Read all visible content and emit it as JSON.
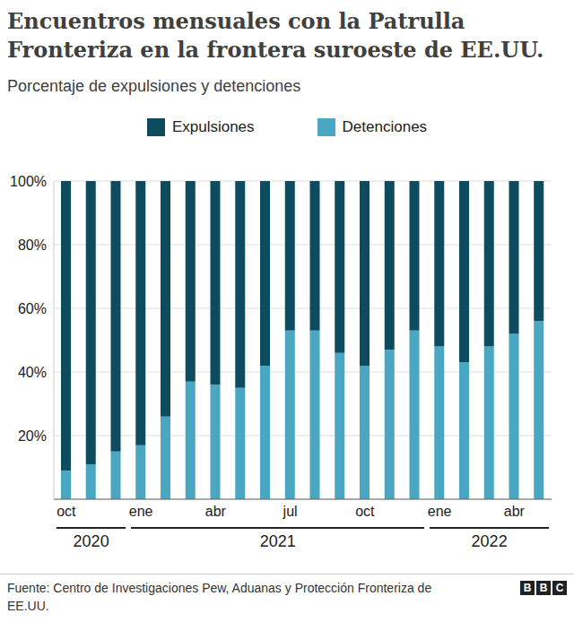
{
  "chart_data": {
    "type": "bar",
    "title": "Encuentros mensuales con la Patrulla Fronteriza en la frontera suroeste de EE.UU.",
    "subtitle": "Porcentaje de expulsiones y detenciones",
    "categories": [
      "oct",
      null,
      null,
      "ene",
      null,
      null,
      "abr",
      null,
      null,
      "jul",
      null,
      null,
      "oct",
      null,
      null,
      "ene",
      null,
      null,
      "abr",
      null
    ],
    "year_groups": [
      {
        "label": "2020",
        "start": 0,
        "end": 2
      },
      {
        "label": "2021",
        "start": 3,
        "end": 14
      },
      {
        "label": "2022",
        "start": 15,
        "end": 19
      }
    ],
    "series": [
      {
        "name": "Expulsiones",
        "color": "#0d4c5f",
        "values": [
          91,
          89,
          85,
          83,
          74,
          63,
          64,
          65,
          58,
          47,
          47,
          54,
          58,
          53,
          47,
          52,
          57,
          52,
          48,
          44
        ]
      },
      {
        "name": "Detenciones",
        "color": "#4aa7c1",
        "values": [
          9,
          11,
          15,
          17,
          26,
          37,
          36,
          35,
          42,
          53,
          53,
          46,
          42,
          47,
          53,
          48,
          43,
          48,
          52,
          56
        ]
      }
    ],
    "ylim": [
      0,
      100
    ],
    "yticks": [
      {
        "value": 20,
        "label": "20%"
      },
      {
        "value": 40,
        "label": "40%"
      },
      {
        "value": 60,
        "label": "60%"
      },
      {
        "value": 80,
        "label": "80%"
      },
      {
        "value": 100,
        "label": "100%"
      }
    ],
    "grid": true,
    "stacked": true,
    "legend": "top",
    "source": "Fuente: Centro de Investigaciones Pew, Aduanas y Protección Fronteriza de EE.UU.",
    "logo": "BBC"
  }
}
